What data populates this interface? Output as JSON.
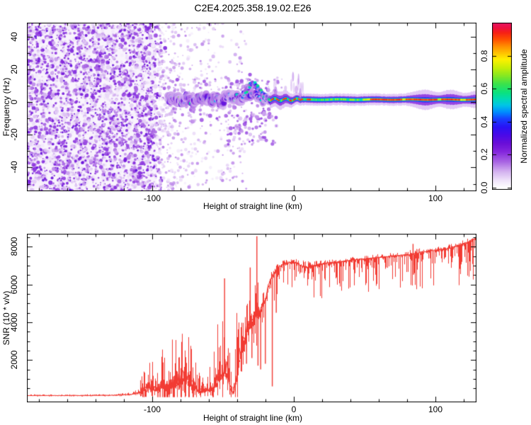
{
  "title": "C2E4.2025.358.19.02.E26",
  "colors": {
    "background": "#ffffff",
    "axis": "#000000",
    "snr_curve": "#f23b33",
    "noise_purple": "#8a2be2"
  },
  "chart_data": [
    {
      "type": "heatmap",
      "title": "C2E4.2025.358.19.02.E26",
      "xlabel": "Height of straight line (km)",
      "ylabel": "Frequency (Hz)",
      "xlim": [
        -188.5,
        129
      ],
      "ylim": [
        -54.5,
        48.5
      ],
      "x_ticks": [
        -100,
        0,
        100
      ],
      "x_minor_step": 20,
      "y_ticks": [
        40,
        20,
        0,
        -20,
        -40
      ],
      "y_minor_step": 10,
      "grid": false,
      "colorbar": {
        "label": "Normalized spectral amplitude",
        "ticks": [
          0.0,
          0.2,
          0.4,
          0.6,
          0.8
        ],
        "range": [
          0,
          1
        ]
      },
      "colormap_stops": [
        [
          0.0,
          "#ffffff"
        ],
        [
          0.04,
          "#f2e8fb"
        ],
        [
          0.1,
          "#d4b2f0"
        ],
        [
          0.16,
          "#a863e3"
        ],
        [
          0.22,
          "#8426dd"
        ],
        [
          0.27,
          "#6a0fd8"
        ],
        [
          0.32,
          "#4a0ae8"
        ],
        [
          0.37,
          "#2a12f5"
        ],
        [
          0.42,
          "#1740ff"
        ],
        [
          0.46,
          "#008cff"
        ],
        [
          0.5,
          "#00c4e8"
        ],
        [
          0.54,
          "#00dbb4"
        ],
        [
          0.58,
          "#0ce27c"
        ],
        [
          0.63,
          "#3ae24c"
        ],
        [
          0.68,
          "#85e822"
        ],
        [
          0.73,
          "#c8ef06"
        ],
        [
          0.78,
          "#fff000"
        ],
        [
          0.82,
          "#ffc000"
        ],
        [
          0.86,
          "#ff8d00"
        ],
        [
          0.9,
          "#ff5000"
        ],
        [
          0.94,
          "#f72214"
        ],
        [
          0.97,
          "#ee1040"
        ],
        [
          1.0,
          "#e81563"
        ]
      ],
      "noise_region": {
        "x_range": [
          -188.5,
          -95
        ],
        "freq_range": [
          -54.5,
          48.5
        ],
        "amplitude_range": [
          0.03,
          0.25
        ]
      },
      "sparse_noise_x_range": [
        -95,
        -35
      ],
      "band_track": [
        [
          -89,
          1
        ],
        [
          -84,
          2.5
        ],
        [
          -80,
          0.5
        ],
        [
          -76,
          2.5
        ],
        [
          -72,
          -0.5
        ],
        [
          -68,
          1.5
        ],
        [
          -64,
          3
        ],
        [
          -60,
          1
        ],
        [
          -56,
          2.5
        ],
        [
          -52,
          0
        ],
        [
          -48,
          2
        ],
        [
          -44,
          3.5
        ],
        [
          -40,
          1.5
        ],
        [
          -36,
          3
        ],
        [
          -33,
          5
        ],
        [
          -30,
          6
        ],
        [
          -27,
          4
        ],
        [
          -24,
          2
        ],
        [
          -20,
          1
        ],
        [
          -17,
          1.5
        ]
      ],
      "branch_track": [
        [
          -37,
          3
        ],
        [
          -34,
          6.5
        ],
        [
          -31,
          10
        ],
        [
          -29,
          11.5
        ],
        [
          -27,
          10
        ],
        [
          -25,
          8
        ],
        [
          -22,
          5
        ],
        [
          -19,
          3
        ],
        [
          -17,
          2
        ]
      ],
      "line_track_freq": 1.5,
      "line_x_range": [
        -17,
        129
      ],
      "line_red_segments": [
        [
          -16.5,
          -14.5
        ],
        [
          -12.5,
          -10.5
        ],
        [
          -8,
          -5.5
        ],
        [
          -3.5,
          -2
        ],
        [
          -0.5,
          1
        ],
        [
          3,
          6
        ],
        [
          9,
          11.5
        ],
        [
          54,
          76
        ],
        [
          79,
          101
        ],
        [
          104,
          117
        ],
        [
          121.5,
          129
        ]
      ],
      "line_bulges": [
        [
          -19,
          3,
          2.5
        ],
        [
          -9,
          4.5,
          5
        ],
        [
          92,
          6,
          6
        ],
        [
          111,
          5.5,
          5
        ],
        [
          128,
          4,
          4
        ]
      ]
    },
    {
      "type": "line",
      "xlabel": "Height of straight line (km)",
      "ylabel": "SNR (10 * v/v)",
      "xlim": [
        -188.5,
        129
      ],
      "ylim": [
        0,
        8690
      ],
      "x_ticks": [
        -100,
        0,
        100
      ],
      "x_minor_step": 20,
      "y_ticks": [
        2000,
        4000,
        6000,
        8000
      ],
      "y_minor_step": 500,
      "grid": false,
      "line_color": "#f23b33",
      "anchors": [
        [
          -188,
          110,
          70
        ],
        [
          -150,
          115,
          70
        ],
        [
          -125,
          130,
          80
        ],
        [
          -115,
          170,
          110
        ],
        [
          -110,
          260,
          260
        ],
        [
          -106,
          420,
          1400
        ],
        [
          -103,
          520,
          2100
        ],
        [
          -100,
          430,
          1600
        ],
        [
          -97,
          380,
          1100
        ],
        [
          -93,
          520,
          2100
        ],
        [
          -89,
          700,
          2700
        ],
        [
          -85,
          650,
          2500
        ],
        [
          -81,
          800,
          3100
        ],
        [
          -77,
          900,
          3600
        ],
        [
          -74,
          750,
          3000
        ],
        [
          -71,
          600,
          2400
        ],
        [
          -68,
          380,
          1100
        ],
        [
          -64,
          330,
          800
        ],
        [
          -61,
          380,
          1000
        ],
        [
          -58,
          480,
          1500
        ],
        [
          -55,
          700,
          2600
        ],
        [
          -52,
          1100,
          4100
        ],
        [
          -49,
          1300,
          4800
        ],
        [
          -47,
          1100,
          4000
        ],
        [
          -45,
          600,
          2200
        ],
        [
          -43.5,
          250,
          600
        ],
        [
          -42,
          400,
          2200
        ],
        [
          -40,
          1200,
          4100
        ],
        [
          -38,
          2200,
          3400
        ],
        [
          -36,
          2900,
          2900
        ],
        [
          -34,
          3400,
          2400
        ],
        [
          -32,
          3700,
          2000
        ],
        [
          -30,
          3950,
          1700
        ],
        [
          -28,
          4200,
          1400
        ],
        [
          -26,
          4400,
          3900
        ],
        [
          -24,
          4600,
          1100
        ],
        [
          -22,
          4900,
          900
        ],
        [
          -20,
          5200,
          800
        ],
        [
          -18,
          5900,
          600
        ],
        [
          -16,
          6300,
          450
        ],
        [
          -14,
          6600,
          330
        ],
        [
          -11,
          6900,
          260
        ],
        [
          -8,
          7050,
          220
        ],
        [
          -4,
          7150,
          200
        ],
        [
          0,
          7180,
          200
        ],
        [
          3,
          7080,
          260
        ],
        [
          6,
          6950,
          320
        ],
        [
          9,
          6880,
          380
        ],
        [
          12,
          6980,
          260
        ],
        [
          18,
          7060,
          200
        ],
        [
          26,
          7140,
          180
        ],
        [
          35,
          7230,
          180
        ],
        [
          45,
          7320,
          180
        ],
        [
          55,
          7390,
          180
        ],
        [
          65,
          7470,
          180
        ],
        [
          75,
          7540,
          190
        ],
        [
          82,
          7560,
          260
        ],
        [
          86,
          7620,
          300
        ],
        [
          92,
          7720,
          200
        ],
        [
          100,
          7810,
          200
        ],
        [
          108,
          7890,
          240
        ],
        [
          115,
          8010,
          260
        ],
        [
          121,
          8180,
          220
        ],
        [
          125,
          8320,
          180
        ],
        [
          129,
          8460,
          140
        ]
      ],
      "dips": [
        [
          -44.3,
          130
        ],
        [
          -37.2,
          1400
        ],
        [
          -33.4,
          1800
        ],
        [
          -29.6,
          2100
        ],
        [
          -25.3,
          1700
        ],
        [
          -23.4,
          1500
        ],
        [
          -20.1,
          1800
        ],
        [
          -15.2,
          600
        ],
        [
          -12.4,
          4500
        ],
        [
          10.2,
          6280
        ],
        [
          84.6,
          6520
        ]
      ],
      "spikes": [
        [
          -48.9,
          6320
        ],
        [
          -30.8,
          6900
        ],
        [
          -26.1,
          8560
        ],
        [
          84.2,
          8150
        ]
      ]
    }
  ]
}
